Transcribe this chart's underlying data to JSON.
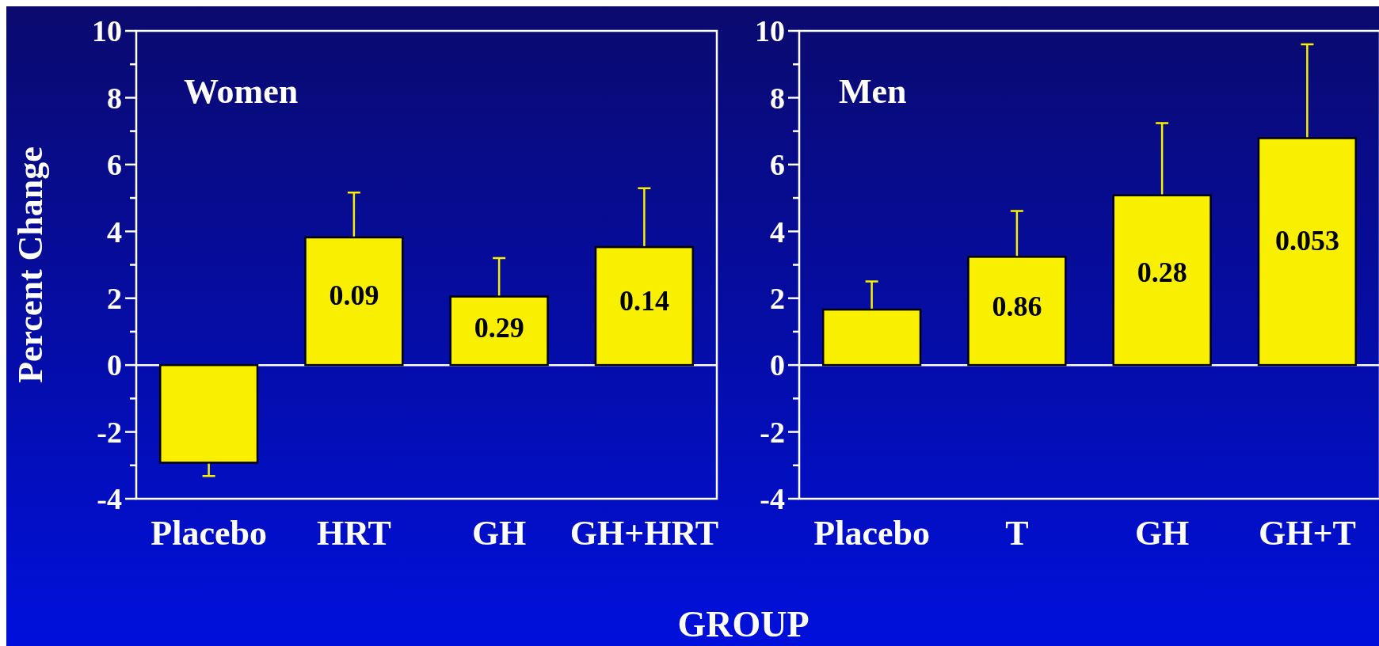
{
  "chart_data": [
    {
      "type": "bar",
      "title": "Women",
      "ylabel": "Percent Change",
      "xlabel": "GROUP",
      "categories": [
        "Placebo",
        "HRT",
        "GH",
        "GH+HRT"
      ],
      "values": [
        -2.92,
        3.82,
        2.05,
        3.53
      ],
      "color": "#f8f000",
      "errors": [
        [
          -3.32,
          -2.92
        ],
        [
          3.82,
          5.16
        ],
        [
          2.05,
          3.2
        ],
        [
          3.53,
          5.29
        ]
      ],
      "ylim": [
        -4,
        10
      ],
      "yticks": [
        -4,
        {
          "value": -3,
          "label": null
        },
        -2,
        {
          "value": -1,
          "label": null
        },
        0,
        {
          "value": 1,
          "label": null
        },
        2,
        {
          "value": 3,
          "label": null
        },
        4,
        {
          "value": 5,
          "label": null
        },
        6,
        {
          "value": 7,
          "label": null
        },
        8,
        {
          "value": 9,
          "label": null
        },
        10
      ],
      "ref_lines": [
        {
          "axis": "y",
          "value": 0,
          "color": "#ffffff"
        }
      ],
      "grid": false,
      "annotations": [
        "0.09",
        "0.29",
        "0.14"
      ]
    },
    {
      "type": "bar",
      "title": "Men",
      "categories": [
        "Placebo",
        "T",
        "GH",
        "GH+T"
      ],
      "values": [
        1.66,
        3.24,
        5.08,
        6.79
      ],
      "color": "#f8f000",
      "errors": [
        [
          1.66,
          2.5
        ],
        [
          3.24,
          4.61
        ],
        [
          5.08,
          7.24
        ],
        [
          6.79,
          9.6
        ]
      ],
      "ylim": [
        -4,
        10
      ],
      "yticks": [
        -4,
        {
          "value": -3,
          "label": null
        },
        -2,
        {
          "value": -1,
          "label": null
        },
        0,
        {
          "value": 1,
          "label": null
        },
        2,
        {
          "value": 3,
          "label": null
        },
        4,
        {
          "value": 5,
          "label": null
        },
        6,
        {
          "value": 7,
          "label": null
        },
        8,
        {
          "value": 9,
          "label": null
        },
        10
      ],
      "ref_lines": [
        {
          "axis": "y",
          "value": 0,
          "color": "#ffffff"
        }
      ],
      "grid": false,
      "annotations": [
        "0.86",
        "0.28",
        "0.053"
      ]
    }
  ]
}
